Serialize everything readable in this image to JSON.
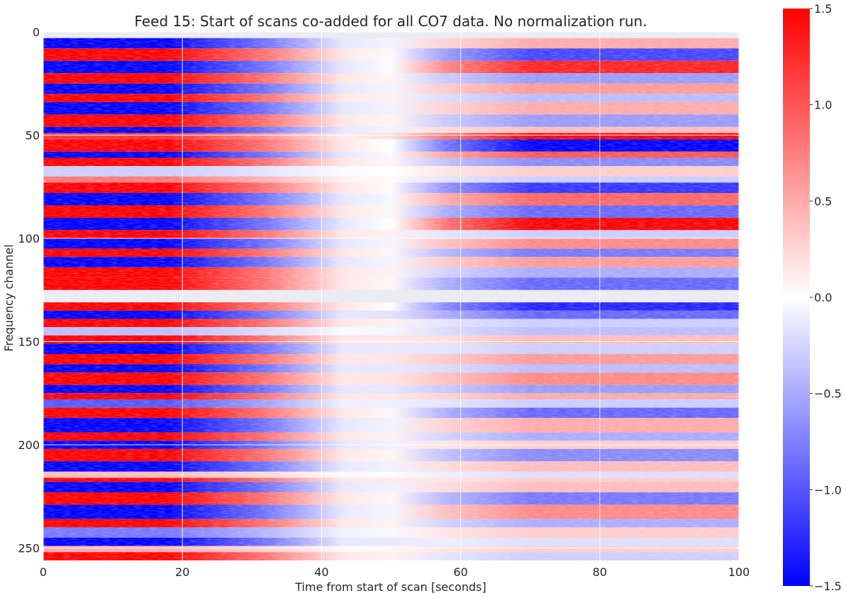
{
  "chart_data": {
    "type": "heatmap",
    "title": "Feed 15: Start of scans co-added for all CO7 data. No normalization run.",
    "xlabel": "Time from start of scan [seconds]",
    "ylabel": "Frequency channel",
    "xlim": [
      0,
      100
    ],
    "ylim": [
      256,
      0
    ],
    "x_ticks": [
      "0",
      "20",
      "40",
      "60",
      "80",
      "100"
    ],
    "y_ticks": [
      "0",
      "50",
      "100",
      "150",
      "200",
      "250"
    ],
    "grid": true,
    "masked_channel_ranges": [
      [
        0,
        3
      ],
      [
        125,
        131
      ]
    ],
    "colorbar": {
      "colormap": "bwr",
      "range": [
        -1.5,
        1.5
      ],
      "ticks": [
        "1.5",
        "1.0",
        "0.5",
        "0.0",
        "−0.5",
        "−1.0",
        "−1.5"
      ],
      "low_color": "#0000ff",
      "mid_color": "#ffffff",
      "high_color": "#ff0000"
    },
    "channel_bands": [
      {
        "channels": [
          3,
          8
        ],
        "start": -1.5,
        "end": 0.5
      },
      {
        "channels": [
          8,
          14
        ],
        "start": 1.5,
        "end": -1.1
      },
      {
        "channels": [
          14,
          20
        ],
        "start": -1.5,
        "end": 1.3
      },
      {
        "channels": [
          20,
          25
        ],
        "start": 1.5,
        "end": -0.6
      },
      {
        "channels": [
          25,
          30
        ],
        "start": -1.5,
        "end": 0.6
      },
      {
        "channels": [
          30,
          34
        ],
        "start": 1.5,
        "end": -0.4
      },
      {
        "channels": [
          34,
          40
        ],
        "start": -1.5,
        "end": 0.5
      },
      {
        "channels": [
          40,
          46
        ],
        "start": 1.5,
        "end": -0.6
      },
      {
        "channels": [
          46,
          49
        ],
        "start": -1.5,
        "end": 0.4
      },
      {
        "channels": [
          49,
          52
        ],
        "start": 1.2,
        "end": 1.5
      },
      {
        "channels": [
          52,
          58
        ],
        "start": 1.5,
        "end": -1.5
      },
      {
        "channels": [
          58,
          61
        ],
        "start": -1.5,
        "end": 1.0
      },
      {
        "channels": [
          61,
          65
        ],
        "start": 1.5,
        "end": -0.7
      },
      {
        "channels": [
          65,
          70
        ],
        "start": -0.3,
        "end": 0.3
      },
      {
        "channels": [
          70,
          73
        ],
        "start": 0.8,
        "end": -0.3
      },
      {
        "channels": [
          73,
          78
        ],
        "start": 1.5,
        "end": -1.2
      },
      {
        "channels": [
          78,
          84
        ],
        "start": -1.5,
        "end": 0.9
      },
      {
        "channels": [
          84,
          90
        ],
        "start": 1.5,
        "end": -0.9
      },
      {
        "channels": [
          90,
          96
        ],
        "start": -1.5,
        "end": 1.5
      },
      {
        "channels": [
          96,
          100
        ],
        "start": 1.5,
        "end": -0.3
      },
      {
        "channels": [
          100,
          105
        ],
        "start": -1.5,
        "end": 0.7
      },
      {
        "channels": [
          105,
          109
        ],
        "start": 1.5,
        "end": -0.8
      },
      {
        "channels": [
          109,
          114
        ],
        "start": -1.5,
        "end": 0.6
      },
      {
        "channels": [
          114,
          119
        ],
        "start": 1.5,
        "end": -0.5
      },
      {
        "channels": [
          119,
          125
        ],
        "start": 1.5,
        "end": -0.9
      },
      {
        "channels": [
          131,
          135
        ],
        "start": 1.5,
        "end": -1.3
      },
      {
        "channels": [
          135,
          139
        ],
        "start": -1.5,
        "end": -0.9
      },
      {
        "channels": [
          139,
          143
        ],
        "start": 1.5,
        "end": -0.3
      },
      {
        "channels": [
          143,
          147
        ],
        "start": -0.4,
        "end": -0.4
      },
      {
        "channels": [
          147,
          151
        ],
        "start": 1.5,
        "end": 0.4
      },
      {
        "channels": [
          151,
          156
        ],
        "start": -1.5,
        "end": -0.3
      },
      {
        "channels": [
          156,
          161
        ],
        "start": 1.5,
        "end": 0.6
      },
      {
        "channels": [
          161,
          165
        ],
        "start": -1.5,
        "end": -0.4
      },
      {
        "channels": [
          165,
          171
        ],
        "start": 1.5,
        "end": 0.7
      },
      {
        "channels": [
          171,
          175
        ],
        "start": -1.5,
        "end": -0.6
      },
      {
        "channels": [
          175,
          178
        ],
        "start": 1.5,
        "end": 0.5
      },
      {
        "channels": [
          178,
          182
        ],
        "start": -1.0,
        "end": -0.3
      },
      {
        "channels": [
          182,
          187
        ],
        "start": 1.5,
        "end": -0.9
      },
      {
        "channels": [
          187,
          194
        ],
        "start": -1.5,
        "end": 0.5
      },
      {
        "channels": [
          194,
          198
        ],
        "start": 1.5,
        "end": -0.5
      },
      {
        "channels": [
          198,
          202
        ],
        "start": -1.5,
        "end": 0.3
      },
      {
        "channels": [
          202,
          208
        ],
        "start": 1.5,
        "end": -0.7
      },
      {
        "channels": [
          208,
          213
        ],
        "start": -1.5,
        "end": 0.4
      },
      {
        "channels": [
          213,
          216
        ],
        "start": 0.4,
        "end": -0.2
      },
      {
        "channels": [
          216,
          218
        ],
        "start": 1.5,
        "end": 0.3
      },
      {
        "channels": [
          218,
          223
        ],
        "start": -1.5,
        "end": 0.4
      },
      {
        "channels": [
          223,
          229
        ],
        "start": 1.5,
        "end": -0.8
      },
      {
        "channels": [
          229,
          236
        ],
        "start": -1.5,
        "end": 0.7
      },
      {
        "channels": [
          236,
          240
        ],
        "start": 1.5,
        "end": -0.5
      },
      {
        "channels": [
          240,
          245
        ],
        "start": -0.8,
        "end": 0.3
      },
      {
        "channels": [
          245,
          249
        ],
        "start": -1.5,
        "end": -0.2
      },
      {
        "channels": [
          249,
          252
        ],
        "start": 0.5,
        "end": 0.3
      },
      {
        "channels": [
          252,
          256
        ],
        "start": 1.5,
        "end": -0.3
      }
    ]
  }
}
